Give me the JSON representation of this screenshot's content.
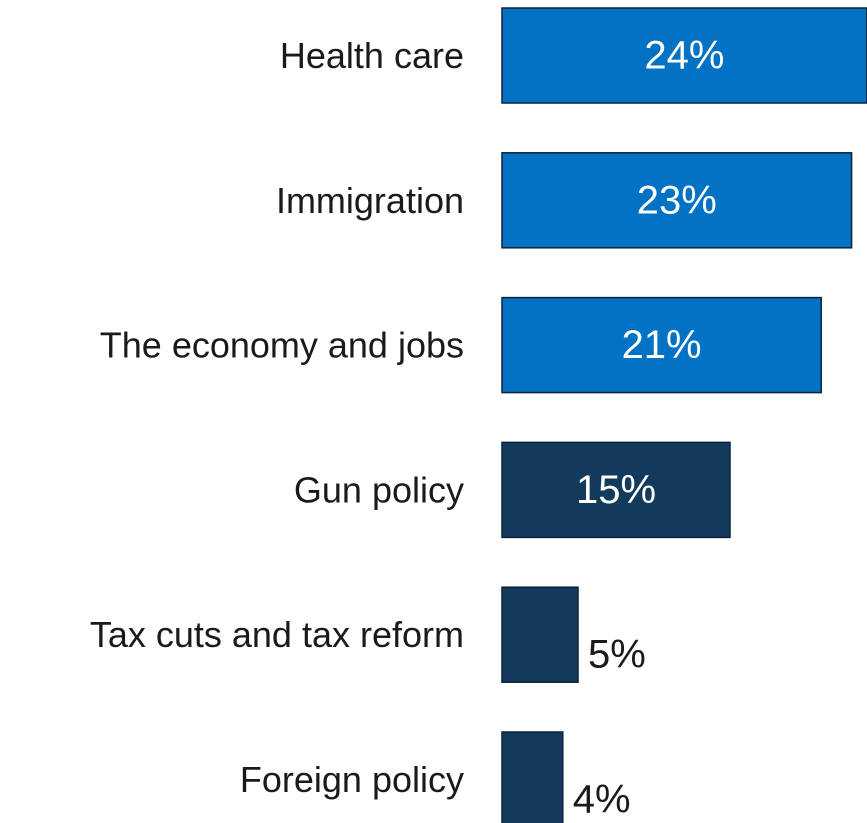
{
  "chart_data": {
    "type": "bar",
    "orientation": "horizontal",
    "categories": [
      "Health care",
      "Immigration",
      "The economy and jobs",
      "Gun policy",
      "Tax cuts and tax reform",
      "Foreign policy"
    ],
    "values": [
      24,
      23,
      21,
      15,
      5,
      4
    ],
    "value_labels": [
      "24%",
      "23%",
      "21%",
      "15%",
      "5%",
      "4%"
    ],
    "bar_colors": [
      "#0272c5",
      "#0272c5",
      "#0272c5",
      "#123a5c",
      "#123a5c",
      "#123a5c"
    ],
    "value_label_colors": [
      "#ffffff",
      "#ffffff",
      "#ffffff",
      "#ffffff",
      "#1a1a1a",
      "#1a1a1a"
    ],
    "value_label_position": [
      "inside",
      "inside",
      "inside",
      "inside",
      "outside",
      "outside"
    ],
    "xlim": [
      0,
      24
    ],
    "grid": false,
    "legend": "none"
  }
}
